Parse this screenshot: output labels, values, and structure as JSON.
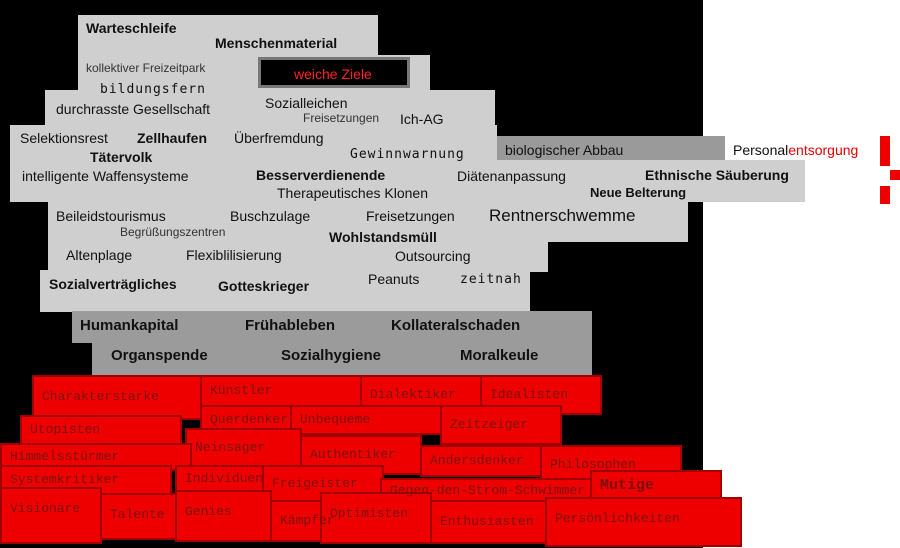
{
  "gray_words": [
    "Warteschleife",
    "Menschenmaterial",
    "kollektiver Freizeitpark",
    "weiche Ziele",
    "bildungsfern",
    "durchrasste Gesellschaft",
    "Sozialleichen",
    "Freisetzungen",
    "Ich-AG",
    "Selektionsrest",
    "Zellhaufen",
    "Überfremdung",
    "Tätervolk",
    "Gewinnwarnung",
    "biologischer Abbau",
    "intelligente Waffensysteme",
    "Besserverdienende",
    "Diätenanpassung",
    "Ethnische Säuberung",
    "Therapeutisches Klonen",
    "Neue Belterung",
    "Beileidstourismus",
    "Buschzulage",
    "Freisetzungen",
    "Rentnerschwemme",
    "Begrüßungszentren",
    "Wohlstandsmüll",
    "Altenplage",
    "Flexiblilisierung",
    "Outsourcing",
    "Sozialverträgliches",
    "Gotteskrieger",
    "Peanuts",
    "zeitnah"
  ],
  "personal": {
    "prefix": "Personal",
    "suffix": "entsorgung"
  },
  "dark_words": [
    "Humankapital",
    "Frühableben",
    "Kollateralschaden",
    "Organspende",
    "Sozialhygiene",
    "Moralkeule"
  ],
  "red_words": [
    "Charakterstarke",
    "Künstler",
    "Dialektiker",
    "Idealisten",
    "Querdenker",
    "Unbequeme",
    "Zeitzeiger",
    "Utopisten",
    "Neinsager",
    "Authentiker",
    "Andersdenker",
    "Philosophen",
    "Himmelsstürmer",
    "Systemkritiker",
    "Individuen",
    "Freigeister",
    "Gegen-den-Strom-Schwimmer",
    "Mutige",
    "Visionäre",
    "Talente",
    "Genies",
    "Kämpfer",
    "Optimisten",
    "Enthusiasten",
    "Persönlichkeiten"
  ]
}
